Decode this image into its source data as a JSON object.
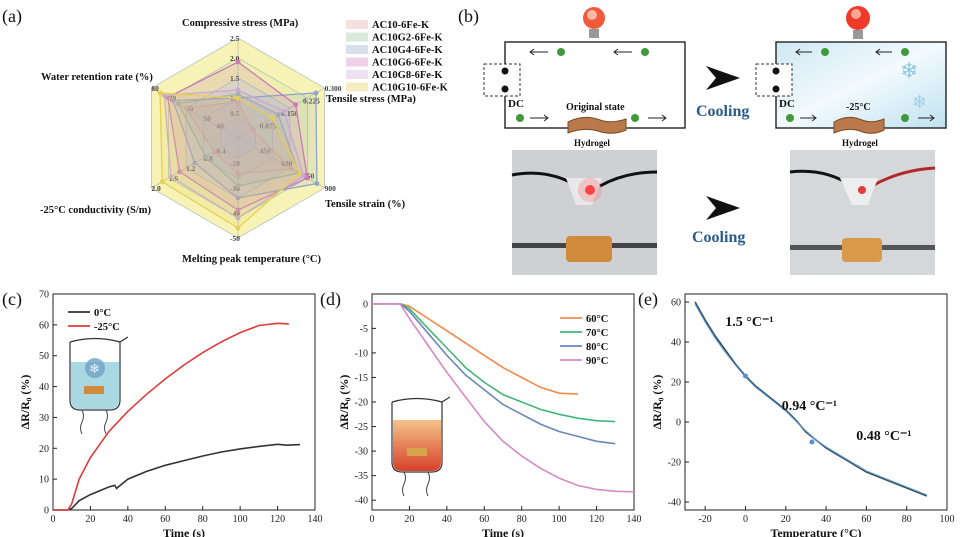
{
  "panel_labels": [
    "(a)",
    "(b)",
    "(c)",
    "(d)",
    "(e)"
  ],
  "panel_b": {
    "dc_label": "DC",
    "original_state_label": "Original state",
    "hydrogel_label": "Hydrogel",
    "cooling_label": "Cooling",
    "temp_label": "-25°C"
  },
  "chart_data": [
    {
      "id": "a",
      "type": "radar",
      "title": "",
      "axes": [
        {
          "name": "Compressive stress (MPa)",
          "max": 2.5,
          "ticks": [
            "2.5",
            "2.0",
            "1.5",
            "1.0",
            "0.5"
          ]
        },
        {
          "name": "Tensile stress (MPa)",
          "max": 0.3,
          "ticks": [
            "0.300",
            "0.225",
            "0.150",
            "0.075"
          ]
        },
        {
          "name": "Tensile strain (%)",
          "max": 900,
          "ticks": [
            "900",
            "750",
            "600",
            "450"
          ]
        },
        {
          "name": "Melting peak temperature (°C)",
          "max": 50,
          "ticks": [
            "-50",
            "-40",
            "-30",
            "-20"
          ]
        },
        {
          "name": "-25°C conductivity (S/m)",
          "max": 2.0,
          "ticks": [
            "2.0",
            "1.6",
            "1.2",
            "0.8",
            "0.4"
          ]
        },
        {
          "name": "Water retention rate (%)",
          "max": 80,
          "ticks": [
            "80",
            "70",
            "60",
            "50",
            "40"
          ]
        }
      ],
      "series": [
        {
          "name": "AC10-6Fe-K",
          "color": "#e8a6a6",
          "values": [
            0.9,
            0.05,
            550,
            18,
            0.55,
            48
          ]
        },
        {
          "name": "AC10G2-6Fe-K",
          "color": "#8fbf9a",
          "values": [
            1.1,
            0.14,
            630,
            24,
            0.75,
            55
          ]
        },
        {
          "name": "AC10G4-6Fe-K",
          "color": "#8ea6c8",
          "values": [
            1.0,
            0.27,
            820,
            30,
            1.0,
            60
          ]
        },
        {
          "name": "AC10G6-6Fe-K",
          "color": "#cf79b9",
          "values": [
            1.9,
            0.2,
            720,
            36,
            1.35,
            65
          ]
        },
        {
          "name": "AC10G8-6Fe-K",
          "color": "#c9a8d9",
          "values": [
            1.2,
            0.16,
            680,
            40,
            1.55,
            68
          ]
        },
        {
          "name": "AC10G10-6Fe-K",
          "color": "#e6cf52",
          "values": [
            1.0,
            0.12,
            640,
            45,
            1.75,
            72
          ]
        }
      ]
    },
    {
      "id": "c",
      "type": "line",
      "xlabel": "Time (s)",
      "ylabel": "ΔR/R₀ (%)",
      "xlim": [
        0,
        140
      ],
      "ylim": [
        0,
        70
      ],
      "xticks": [
        "0",
        "20",
        "40",
        "60",
        "80",
        "100",
        "120",
        "140"
      ],
      "yticks": [
        "0",
        "10",
        "20",
        "30",
        "40",
        "50",
        "60",
        "70"
      ],
      "series": [
        {
          "name": "0°C",
          "color": "#333333",
          "x": [
            0,
            8,
            10,
            14,
            20,
            30,
            33,
            34,
            40,
            50,
            60,
            70,
            80,
            90,
            100,
            110,
            120,
            125,
            132
          ],
          "y": [
            0,
            0,
            0.5,
            3,
            5,
            7.5,
            8,
            7,
            10,
            12.5,
            14.5,
            16,
            17.5,
            18.8,
            19.8,
            20.6,
            21.3,
            21.0,
            21.2
          ]
        },
        {
          "name": "-25°C",
          "color": "#e03b3b",
          "x": [
            0,
            8,
            10,
            14,
            20,
            30,
            40,
            50,
            60,
            70,
            80,
            90,
            100,
            110,
            120,
            126
          ],
          "y": [
            0,
            0,
            2,
            10,
            17,
            25.5,
            32,
            37.5,
            42.5,
            47,
            51,
            54.5,
            57.5,
            59.8,
            60.5,
            60.3
          ]
        }
      ]
    },
    {
      "id": "d",
      "type": "line",
      "xlabel": "Time (s)",
      "ylabel": "ΔR/R₀ (%)",
      "xlim": [
        0,
        140
      ],
      "ylim": [
        -42,
        2
      ],
      "xticks": [
        "0",
        "20",
        "40",
        "60",
        "80",
        "100",
        "120",
        "140"
      ],
      "yticks": [
        "0",
        "-5",
        "-10",
        "-15",
        "-20",
        "-25",
        "-30",
        "-35",
        "-40"
      ],
      "series": [
        {
          "name": "60°C",
          "color": "#f08a4b",
          "x": [
            0,
            15,
            20,
            30,
            40,
            50,
            60,
            70,
            80,
            90,
            100,
            110
          ],
          "y": [
            0,
            0,
            -0.5,
            -3,
            -5.5,
            -8,
            -10.5,
            -13,
            -15,
            -17,
            -18.2,
            -18.4
          ]
        },
        {
          "name": "70°C",
          "color": "#43b778",
          "x": [
            0,
            15,
            20,
            30,
            40,
            50,
            60,
            70,
            80,
            90,
            100,
            110,
            120,
            130
          ],
          "y": [
            0,
            0,
            -1,
            -5,
            -9,
            -13,
            -16,
            -18.5,
            -20,
            -21.5,
            -22.5,
            -23.3,
            -23.8,
            -24
          ]
        },
        {
          "name": "80°C",
          "color": "#6b86b8",
          "x": [
            0,
            15,
            20,
            30,
            40,
            50,
            60,
            70,
            80,
            90,
            100,
            110,
            120,
            130
          ],
          "y": [
            0,
            0,
            -1.5,
            -6,
            -10.5,
            -14.5,
            -17.5,
            -20.5,
            -22.5,
            -24.5,
            -26,
            -27,
            -28,
            -28.5
          ]
        },
        {
          "name": "90°C",
          "color": "#d88ac4",
          "x": [
            0,
            15,
            20,
            30,
            40,
            50,
            60,
            70,
            80,
            90,
            100,
            110,
            120,
            130,
            140
          ],
          "y": [
            0,
            0,
            -3,
            -8.5,
            -14,
            -19,
            -24,
            -28,
            -31,
            -33.5,
            -35.5,
            -37,
            -37.8,
            -38.2,
            -38.3
          ]
        }
      ]
    },
    {
      "id": "e",
      "type": "line",
      "xlabel": "Temperature (°C)",
      "ylabel": "ΔR/R₀ (%)",
      "xlim": [
        -30,
        100
      ],
      "ylim": [
        -44,
        64
      ],
      "xticks": [
        "-20",
        "0",
        "20",
        "40",
        "60",
        "80",
        "100"
      ],
      "yticks": [
        "60",
        "40",
        "20",
        "0",
        "-20",
        "-40"
      ],
      "annotations": [
        "1.5 °C⁻¹",
        "0.94 °C⁻¹",
        "0.48 °C⁻¹"
      ],
      "series": [
        {
          "name": "data",
          "color": "#2f4f4f",
          "x": [
            -25,
            -20,
            -15,
            -10,
            -5,
            0,
            5,
            10,
            15,
            20,
            25,
            30,
            35,
            40,
            45,
            50,
            55,
            60,
            65,
            70,
            75,
            80,
            85,
            90
          ],
          "y": [
            60,
            51,
            43,
            36,
            29,
            23,
            18,
            14,
            10,
            6,
            1,
            -5,
            -9,
            -13,
            -16,
            -19,
            -22,
            -25,
            -27,
            -29,
            -31,
            -33,
            -35,
            -37
          ]
        },
        {
          "name": "fit",
          "color": "#5b8fcf",
          "x": [
            -25,
            -20,
            -15,
            -10,
            -5,
            0,
            5,
            10,
            15,
            20,
            25,
            30,
            35,
            40,
            45,
            50,
            55,
            60,
            65,
            70,
            75,
            80,
            85,
            90
          ],
          "y": [
            59,
            50,
            42,
            35,
            28.5,
            22.5,
            17.5,
            13.5,
            9.5,
            5.5,
            0.5,
            -4.5,
            -9,
            -12.5,
            -15.5,
            -18.5,
            -21.5,
            -24.5,
            -26.5,
            -28.5,
            -30.5,
            -32.5,
            -34.5,
            -36.5
          ]
        }
      ]
    }
  ]
}
